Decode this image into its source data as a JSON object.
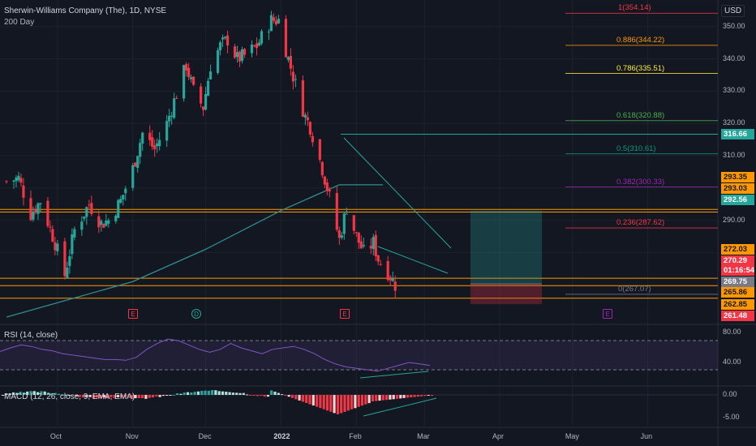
{
  "chart": {
    "symbol_title": "Sherwin-Williams Company (The), 1D, NYSE",
    "indicator_label": "200 Day",
    "currency": "USD",
    "price_axis_ticks": [
      "350.00",
      "340.00",
      "330.00",
      "320.00",
      "310.00",
      "300.00",
      "290.00",
      "280.00"
    ],
    "time_axis_ticks": [
      "Oct",
      "Nov",
      "Dec",
      "2022",
      "Feb",
      "Mar",
      "Apr",
      "May",
      "Jun"
    ],
    "fib_levels": [
      {
        "label": "1(354.14)",
        "color": "#f23645"
      },
      {
        "label": "0.886(344.22)",
        "color": "#ff9800"
      },
      {
        "label": "0.786(335.51)",
        "color": "#ffeb3b"
      },
      {
        "label": "0.618(320.88)",
        "color": "#4caf50"
      },
      {
        "label": "0.5(310.61)",
        "color": "#089981"
      },
      {
        "label": "0.382(300.33)",
        "color": "#9c27b0"
      },
      {
        "label": "0.236(287.62)",
        "color": "#f23645"
      },
      {
        "label": "0(267.07)",
        "color": "#787b86"
      }
    ],
    "price_tags": [
      {
        "text": "316.66",
        "bg": "#26a69a",
        "fg": "#ffffff"
      },
      {
        "text": "293.35",
        "bg": "#ff9800",
        "fg": "#131722"
      },
      {
        "text": "293.03",
        "bg": "#ff9800",
        "fg": "#131722"
      },
      {
        "text": "292.56",
        "bg": "#26a69a",
        "fg": "#ffffff"
      },
      {
        "text": "272.03",
        "bg": "#ff9800",
        "fg": "#131722"
      },
      {
        "text": "270.29",
        "bg": "#f23645",
        "fg": "#ffffff"
      },
      {
        "text": "01:16:54",
        "bg": "#f23645",
        "fg": "#ffffff"
      },
      {
        "text": "269.75",
        "bg": "#787b86",
        "fg": "#ffffff"
      },
      {
        "text": "265.86",
        "bg": "#ff9800",
        "fg": "#131722"
      },
      {
        "text": "262.85",
        "bg": "#ff9800",
        "fg": "#131722"
      },
      {
        "text": "261.48",
        "bg": "#f23645",
        "fg": "#ffffff"
      }
    ],
    "event_markers": [
      {
        "letter": "E",
        "color": "#f23645"
      },
      {
        "letter": "D",
        "color": "#26a69a"
      },
      {
        "letter": "E",
        "color": "#f23645"
      },
      {
        "letter": "E",
        "color": "#9c27b0"
      }
    ]
  },
  "rsi": {
    "label": "RSI (14, close)",
    "ticks": [
      "80.00",
      "40.00"
    ]
  },
  "macd": {
    "label": "MACD (12, 26, close, 9, EMA, EMA)",
    "ticks": [
      "0.00",
      "-5.00"
    ]
  },
  "colors": {
    "up": "#26a69a",
    "down": "#f23645",
    "bg": "#131722",
    "grid": "#1e222d",
    "ma": "#2f8f8f",
    "hline": "#ff9800",
    "rsi_line": "#7e57c2"
  },
  "chart_data": {
    "type": "candlestick",
    "title": "Sherwin-Williams Company (The), 1D, NYSE",
    "y_range": [
      259,
      357
    ],
    "x_months": [
      "Oct",
      "Nov",
      "Dec",
      "2022",
      "Feb",
      "Mar",
      "Apr",
      "May",
      "Jun"
    ],
    "close_path": [
      {
        "date": "2021-09-10",
        "close": 302
      },
      {
        "date": "2021-09-15",
        "close": 303
      },
      {
        "date": "2021-09-20",
        "close": 292
      },
      {
        "date": "2021-09-24",
        "close": 296
      },
      {
        "date": "2021-09-30",
        "close": 283
      },
      {
        "date": "2021-10-04",
        "close": 273
      },
      {
        "date": "2021-10-08",
        "close": 287
      },
      {
        "date": "2021-10-14",
        "close": 295
      },
      {
        "date": "2021-10-19",
        "close": 289
      },
      {
        "date": "2021-10-22",
        "close": 290
      },
      {
        "date": "2021-10-27",
        "close": 296
      },
      {
        "date": "2021-11-01",
        "close": 306
      },
      {
        "date": "2021-11-05",
        "close": 317
      },
      {
        "date": "2021-11-10",
        "close": 312
      },
      {
        "date": "2021-11-15",
        "close": 320
      },
      {
        "date": "2021-11-18",
        "close": 327
      },
      {
        "date": "2021-11-23",
        "close": 338
      },
      {
        "date": "2021-11-26",
        "close": 330
      },
      {
        "date": "2021-11-30",
        "close": 325
      },
      {
        "date": "2021-12-03",
        "close": 338
      },
      {
        "date": "2021-12-07",
        "close": 344
      },
      {
        "date": "2021-12-10",
        "close": 346
      },
      {
        "date": "2021-12-14",
        "close": 340
      },
      {
        "date": "2021-12-17",
        "close": 341
      },
      {
        "date": "2021-12-22",
        "close": 344
      },
      {
        "date": "2021-12-28",
        "close": 352
      },
      {
        "date": "2021-12-31",
        "close": 352
      },
      {
        "date": "2022-01-04",
        "close": 340
      },
      {
        "date": "2022-01-07",
        "close": 332
      },
      {
        "date": "2022-01-11",
        "close": 322
      },
      {
        "date": "2022-01-13",
        "close": 319
      },
      {
        "date": "2022-01-18",
        "close": 306
      },
      {
        "date": "2022-01-21",
        "close": 297
      },
      {
        "date": "2022-01-25",
        "close": 284
      },
      {
        "date": "2022-01-28",
        "close": 294
      },
      {
        "date": "2022-02-01",
        "close": 285
      },
      {
        "date": "2022-02-04",
        "close": 280
      },
      {
        "date": "2022-02-08",
        "close": 283
      },
      {
        "date": "2022-02-10",
        "close": 278
      },
      {
        "date": "2022-02-14",
        "close": 274
      },
      {
        "date": "2022-02-17",
        "close": 270
      }
    ],
    "ma200_path": [
      {
        "date": "2021-09-10",
        "value": 260
      },
      {
        "date": "2021-11-01",
        "value": 271
      },
      {
        "date": "2021-12-01",
        "value": 281
      },
      {
        "date": "2022-01-01",
        "value": 293
      },
      {
        "date": "2022-01-25",
        "value": 301
      },
      {
        "date": "2022-02-12",
        "value": 301
      }
    ],
    "horizontal_levels": [
      316.66,
      293.35,
      293.03,
      292.56,
      272.03,
      269.75
    ],
    "last_price": 270.29,
    "fibonacci": [
      {
        "ratio": 1,
        "price": 354.14
      },
      {
        "ratio": 0.886,
        "price": 344.22
      },
      {
        "ratio": 0.786,
        "price": 335.51
      },
      {
        "ratio": 0.618,
        "price": 320.88
      },
      {
        "ratio": 0.5,
        "price": 310.61
      },
      {
        "ratio": 0.382,
        "price": 300.33
      },
      {
        "ratio": 0.236,
        "price": 287.62
      },
      {
        "ratio": 0,
        "price": 267.07
      }
    ],
    "rsi_levels": [
      70,
      30
    ],
    "rsi_path": [
      55,
      60,
      64,
      62,
      58,
      56,
      52,
      50,
      48,
      46,
      44,
      44,
      43,
      47,
      58,
      66,
      72,
      70,
      64,
      58,
      54,
      58,
      66,
      60,
      56,
      52,
      58,
      60,
      62,
      58,
      52,
      44,
      38,
      34,
      32,
      30,
      28,
      32,
      36,
      40,
      38,
      36
    ]
  }
}
